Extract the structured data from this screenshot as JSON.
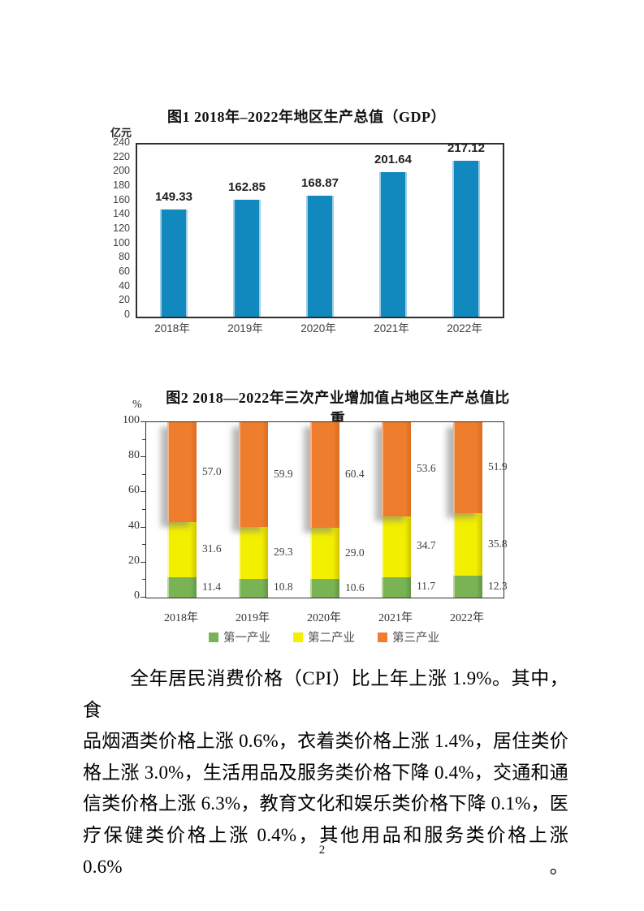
{
  "page": {
    "number": "2"
  },
  "chart_data": [
    {
      "id": "gdp",
      "type": "bar",
      "title": "图1 2018年–2022年地区生产总值（GDP）",
      "unit_label": "亿元",
      "categories": [
        "2018年",
        "2019年",
        "2020年",
        "2021年",
        "2022年"
      ],
      "values": [
        149.33,
        162.85,
        168.87,
        201.64,
        217.12
      ],
      "value_labels": [
        "149.33",
        "162.85",
        "168.87",
        "201.64",
        "217.12"
      ],
      "ylim": [
        0,
        240
      ],
      "ytick_step": 20,
      "bar_color": "#1189BE",
      "grid": false,
      "legend": "none"
    },
    {
      "id": "industry-share",
      "type": "stacked-bar",
      "title": "图2 2018—2022年三次产业增加值占地区生产总值比重",
      "unit_label": "%",
      "categories": [
        "2018年",
        "2019年",
        "2020年",
        "2021年",
        "2022年"
      ],
      "series": [
        {
          "name": "第一产业",
          "color": "#79B354",
          "values": [
            11.4,
            10.8,
            10.6,
            11.7,
            12.3
          ],
          "value_labels": [
            "11.4",
            "10.8",
            "10.6",
            "11.7",
            "12.3"
          ]
        },
        {
          "name": "第二产业",
          "color": "#F3EF00",
          "values": [
            31.6,
            29.3,
            29.0,
            34.7,
            35.8
          ],
          "value_labels": [
            "31.6",
            "29.3",
            "29.0",
            "34.7",
            "35.8"
          ]
        },
        {
          "name": "第三产业",
          "color": "#EE7D2E",
          "values": [
            57.0,
            59.9,
            60.4,
            53.6,
            51.9
          ],
          "value_labels": [
            "57.0",
            "59.9",
            "60.4",
            "53.6",
            "51.9"
          ]
        }
      ],
      "ylim": [
        0,
        100
      ],
      "ytick_step": 20,
      "grid": false,
      "legend_position": "bottom"
    }
  ],
  "paragraph": {
    "lines": [
      "全年居民消费价格（CPI）比上年上涨 1.9%。其中，食",
      "品烟酒类价格上涨 0.6%，衣着类价格上涨 1.4%，居住类价",
      "格上涨 3.0%，生活用品及服务类价格下降 0.4%，交通和通",
      "信类价格上涨 6.3%，教育文化和娱乐类价格下降 0.1%，医",
      "疗保健类价格上涨 0.4%，其他用品和服务类价格上涨 0.6%。"
    ]
  }
}
